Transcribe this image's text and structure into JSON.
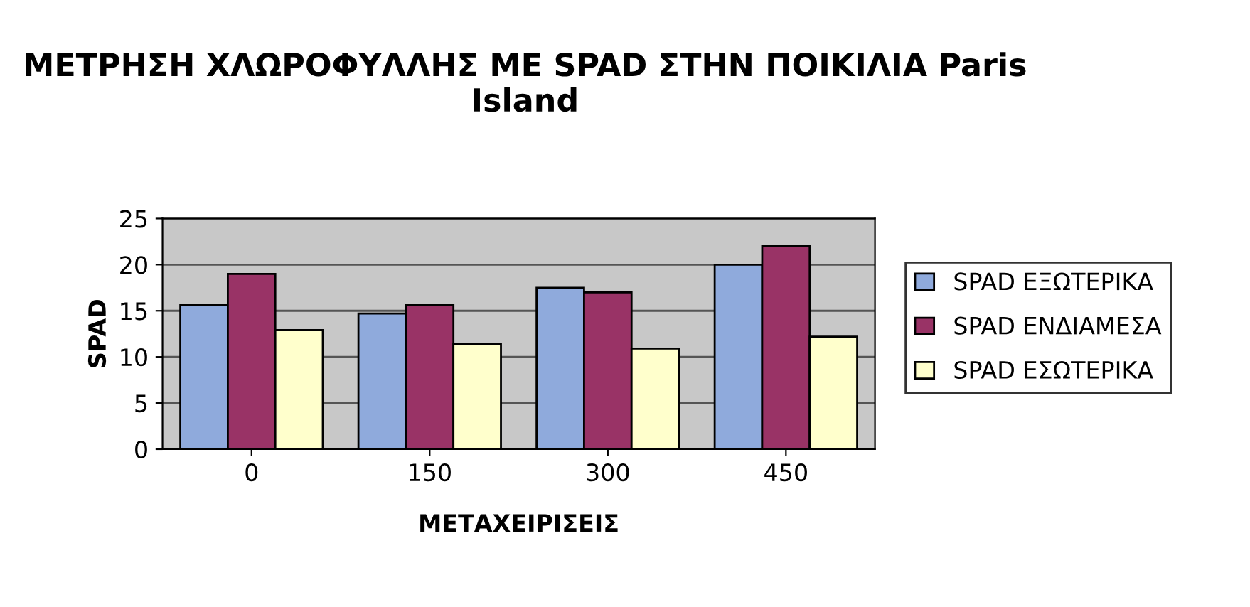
{
  "chart_data": {
    "type": "bar",
    "title": "ΜΕΤΡΗΣΗ ΧΛΩΡΟΦΥΛΛΗΣ ΜΕ SPAD ΣΤΗΝ ΠΟΙΚΙΛΙΑ Paris Island",
    "xlabel": "ΜΕΤΑΧΕΙΡΙΣΕΙΣ",
    "ylabel": "SPAD",
    "categories": [
      "0",
      "150",
      "300",
      "450"
    ],
    "series": [
      {
        "name": "SPAD ΕΞΩΤΕΡΙΚΑ",
        "color": "#8faadc",
        "values": [
          15.6,
          14.7,
          17.5,
          20.0
        ]
      },
      {
        "name": "SPAD ΕΝΔΙΑΜΕΣΑ",
        "color": "#993366",
        "values": [
          19.0,
          15.6,
          17.0,
          22.0
        ]
      },
      {
        "name": "SPAD ΕΣΩΤΕΡΙΚΑ",
        "color": "#ffffcc",
        "values": [
          12.9,
          11.4,
          10.9,
          12.2
        ]
      }
    ],
    "ylim": [
      0,
      25
    ],
    "yticks": [
      0,
      5,
      10,
      15,
      20,
      25
    ],
    "grid": "y",
    "legend": "right"
  }
}
